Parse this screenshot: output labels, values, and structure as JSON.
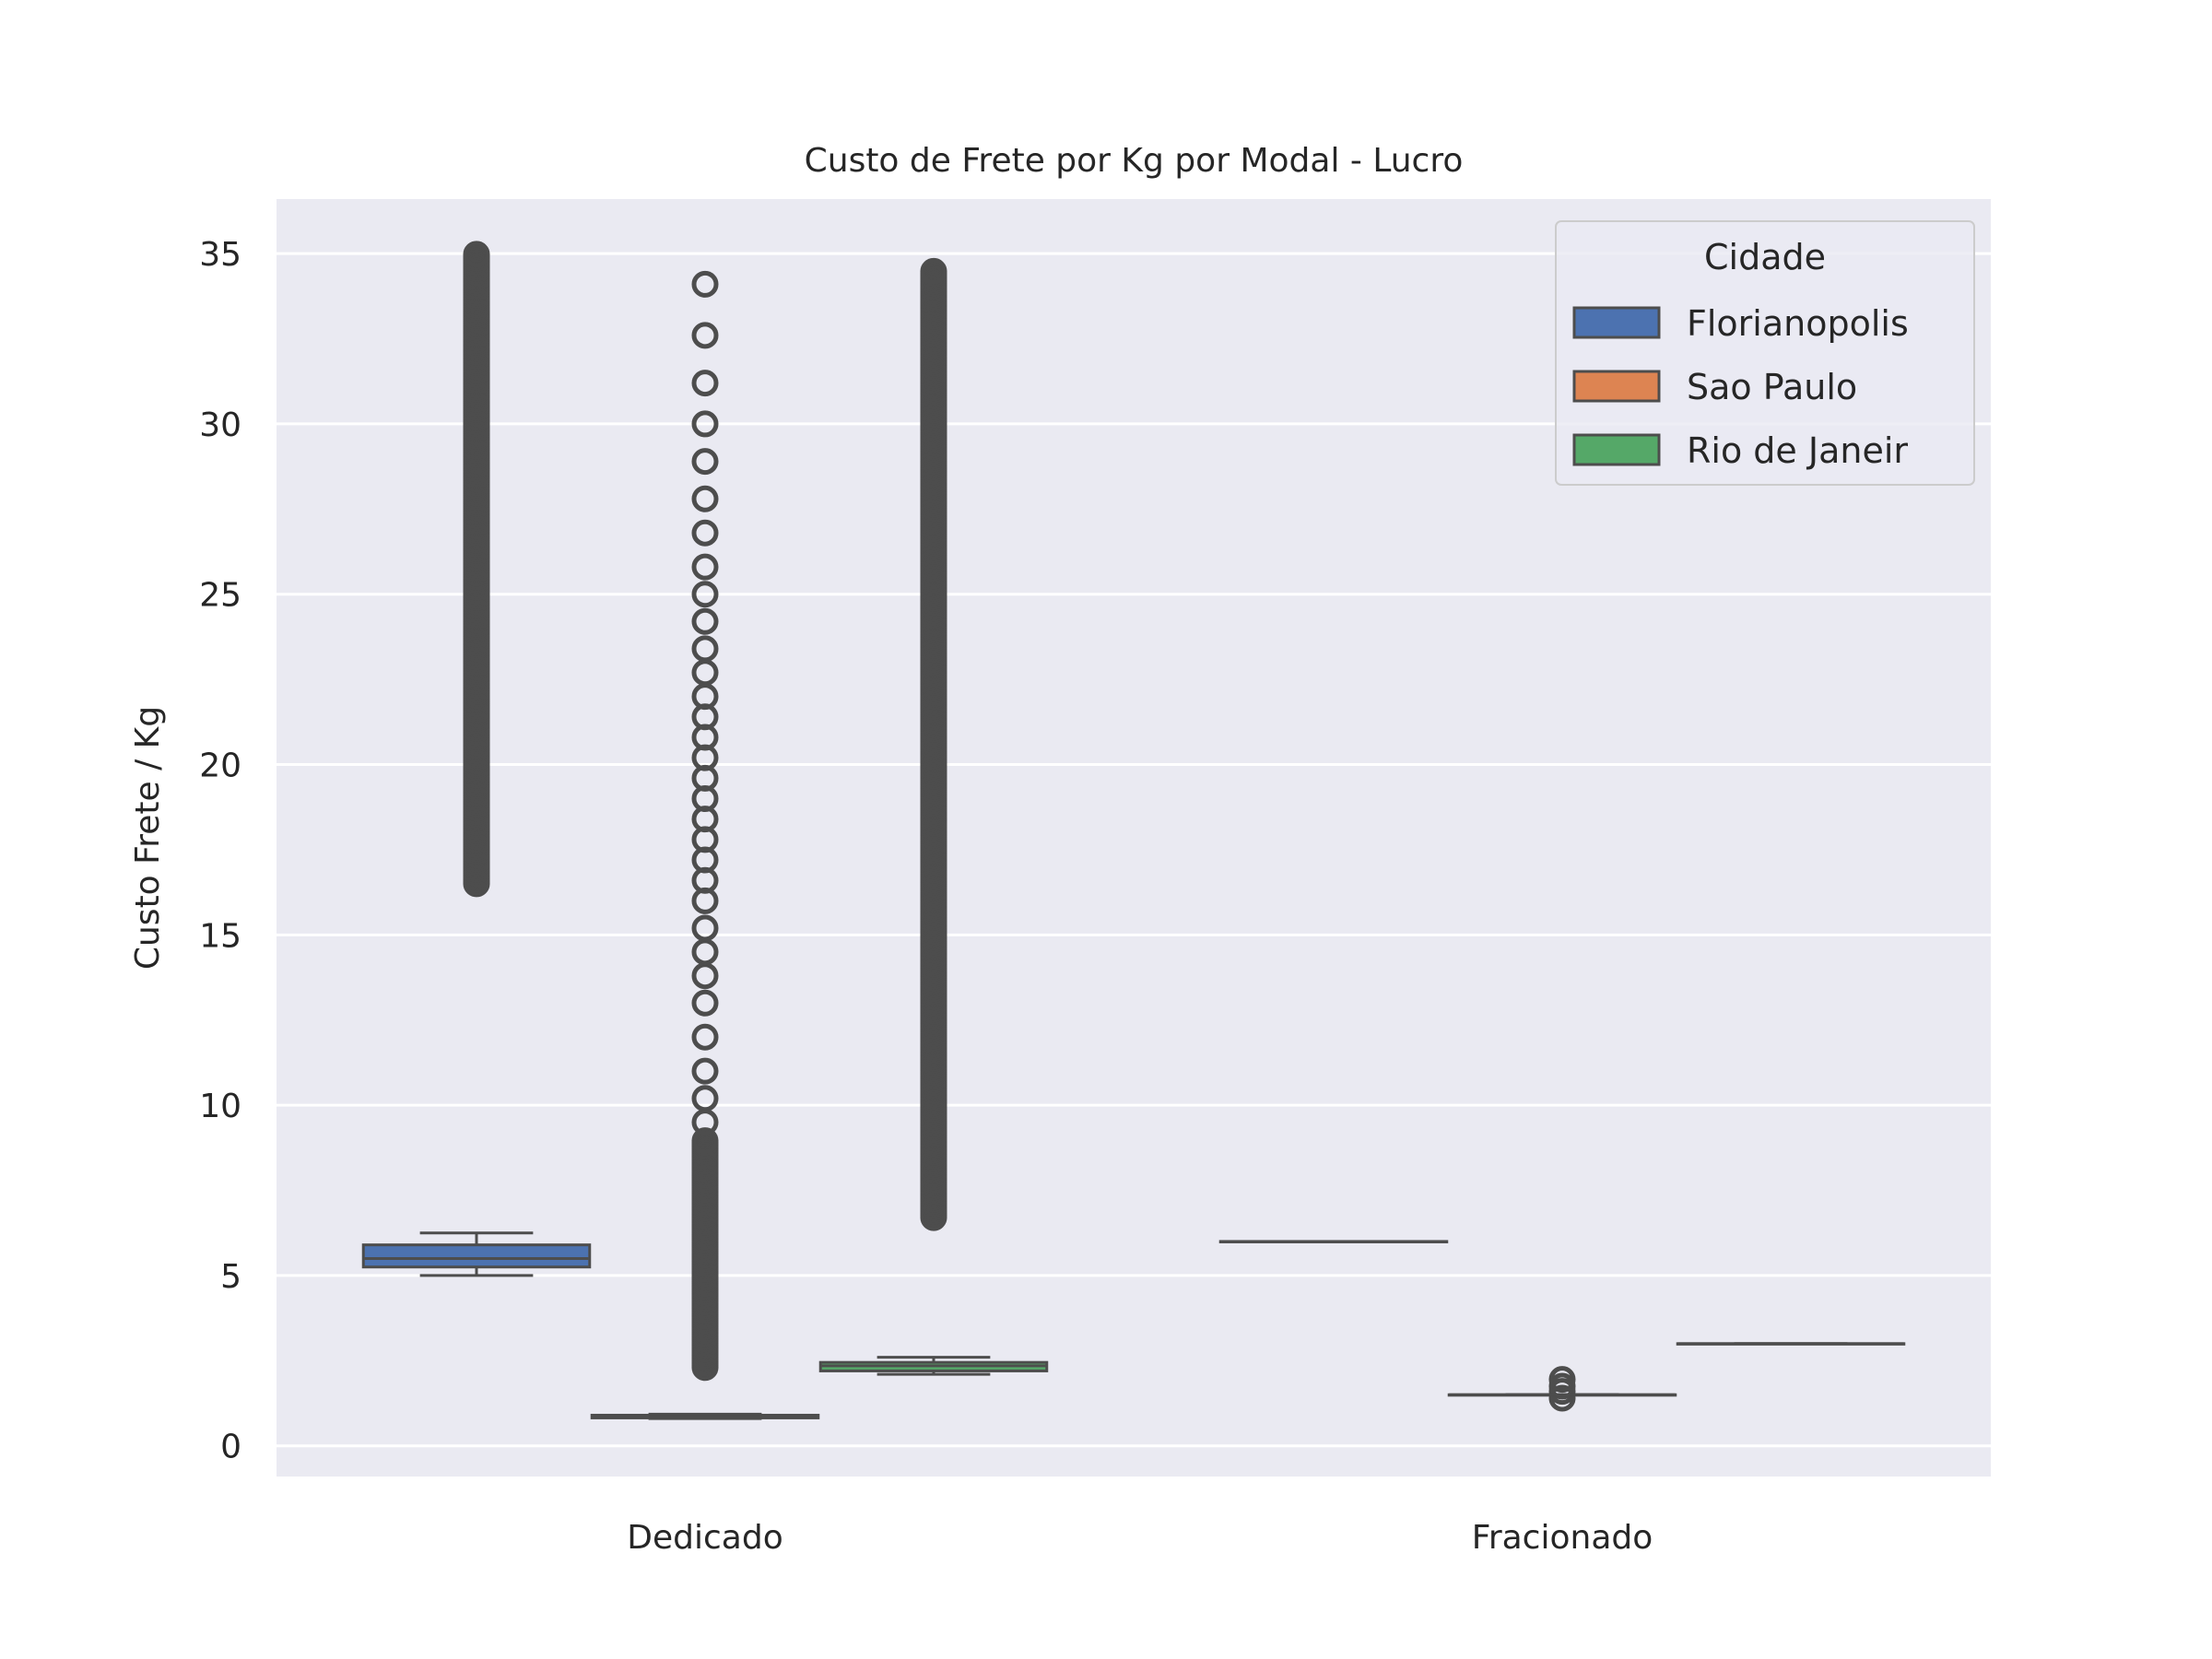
{
  "chart_data": {
    "type": "box",
    "title": "Custo de Frete por Kg por Modal - Lucro",
    "xlabel": "",
    "ylabel": "Custo Frete / Kg",
    "ylim": [
      -0.9,
      36.6
    ],
    "yticks": [
      0,
      5,
      10,
      15,
      20,
      25,
      30,
      35
    ],
    "grid": true,
    "categories": [
      "Dedicado",
      "Fracionado"
    ],
    "legend": {
      "title": "Cidade",
      "placement": "top-right",
      "entries": [
        "Florianopolis",
        "Sao Paulo",
        "Rio de Janeir"
      ]
    },
    "series": [
      {
        "name": "Florianopolis",
        "color": "#4c72b0",
        "boxes": [
          {
            "category": "Dedicado",
            "whisker_low": 5.0,
            "q1": 5.25,
            "median": 5.5,
            "q3": 5.9,
            "whisker_high": 6.25,
            "outlier_range": [
              16.5,
              35.0
            ]
          },
          {
            "category": "Fracionado",
            "whisker_low": 6.0,
            "q1": 6.0,
            "median": 6.0,
            "q3": 6.0,
            "whisker_high": 6.0,
            "outliers": []
          }
        ]
      },
      {
        "name": "Sao Paulo",
        "color": "#dd8452",
        "boxes": [
          {
            "category": "Dedicado",
            "whisker_low": 0.8,
            "q1": 0.82,
            "median": 0.85,
            "q3": 0.9,
            "whisker_high": 0.93,
            "outlier_range": [
              2.3,
              9.0
            ],
            "outliers": [
              9.5,
              10.2,
              11.0,
              12.0,
              13.0,
              13.8,
              14.5,
              15.2,
              16.0,
              16.6,
              17.2,
              17.8,
              18.4,
              19.0,
              19.6,
              20.2,
              20.8,
              21.4,
              22.0,
              22.7,
              23.4,
              24.2,
              25.0,
              25.8,
              26.8,
              27.8,
              28.9,
              30.0,
              31.2,
              32.6,
              34.1
            ]
          },
          {
            "category": "Fracionado",
            "whisker_low": 1.5,
            "q1": 1.5,
            "median": 1.5,
            "q3": 1.5,
            "whisker_high": 1.5,
            "outliers": [
              1.4,
              1.6,
              1.75,
              1.95
            ]
          }
        ]
      },
      {
        "name": "Rio de Janeir",
        "color": "#55a868",
        "boxes": [
          {
            "category": "Dedicado",
            "whisker_low": 2.1,
            "q1": 2.2,
            "median": 2.35,
            "q3": 2.45,
            "whisker_high": 2.6,
            "outlier_range": [
              6.7,
              34.5
            ]
          },
          {
            "category": "Fracionado",
            "whisker_low": 3.0,
            "q1": 3.0,
            "median": 3.0,
            "q3": 3.0,
            "whisker_high": 3.0,
            "outliers": []
          }
        ]
      }
    ]
  }
}
